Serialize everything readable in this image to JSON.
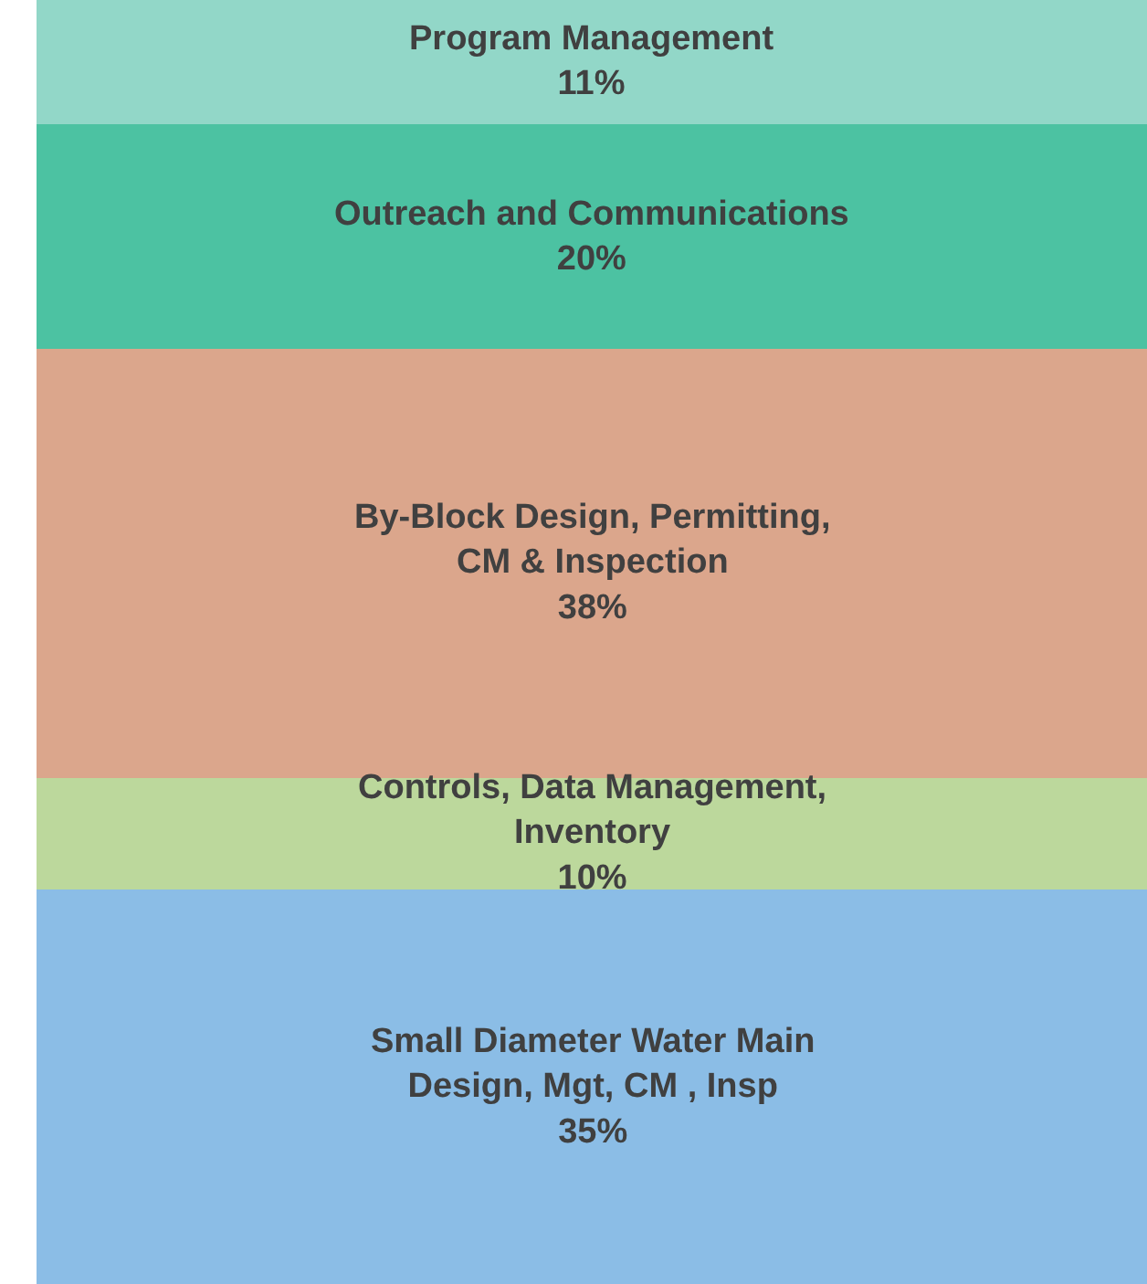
{
  "chart_data": {
    "type": "bar",
    "stacked": true,
    "categories": [
      null
    ],
    "ylim": [
      0,
      114
    ],
    "series": [
      {
        "name": "Small Diameter Water Main Design, Mgt, CM , Insp",
        "color": "#8bbde6",
        "values": [
          35
        ],
        "value_labels": [
          "35%"
        ]
      },
      {
        "name": "Controls, Data Management, Inventory",
        "color": "#bcd89c",
        "values": [
          10
        ],
        "value_labels": [
          "10%"
        ]
      },
      {
        "name": "By-Block Design, Permitting, CM & Inspection",
        "color": "#dba68c",
        "values": [
          38
        ],
        "value_labels": [
          "38%"
        ]
      },
      {
        "name": "Outreach and Communications",
        "color": "#4cc2a2",
        "values": [
          20
        ],
        "value_labels": [
          "20%"
        ]
      },
      {
        "name": "Program Management",
        "color": "#92d7c8",
        "values": [
          11
        ],
        "value_labels": [
          "11%"
        ]
      }
    ]
  }
}
